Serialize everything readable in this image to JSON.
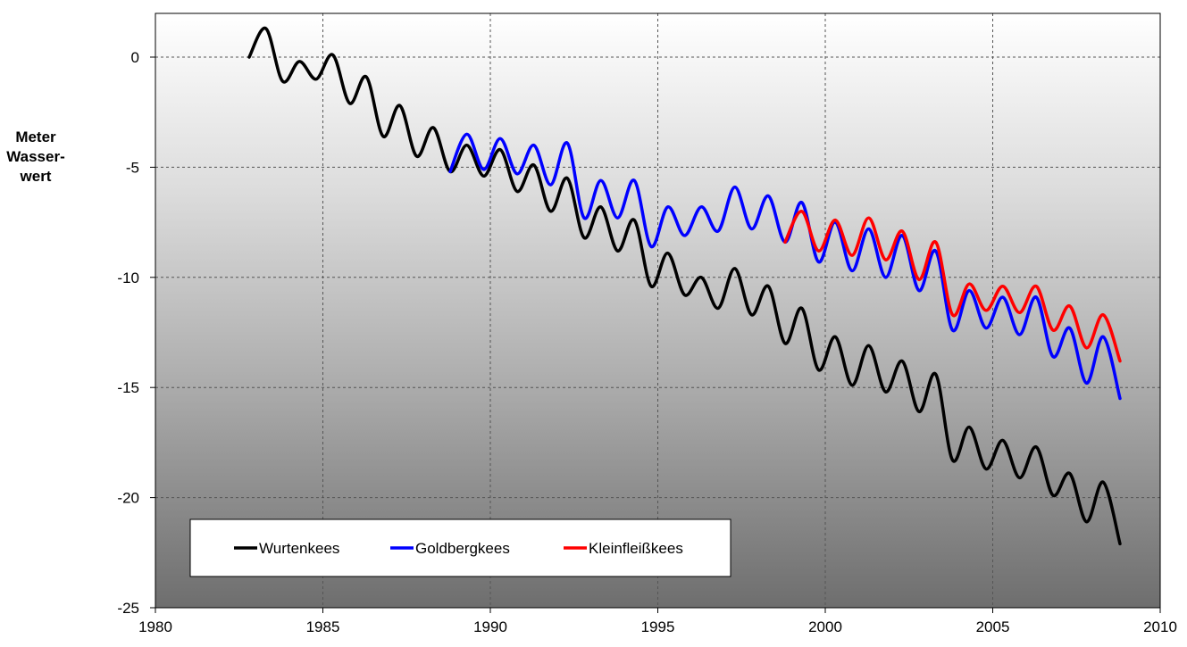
{
  "chart_data": {
    "type": "line",
    "ylabel": "Meter\nWasser-\nwert",
    "xlim": [
      1980,
      2010
    ],
    "ylim": [
      -25,
      2
    ],
    "xticks": [
      1980,
      1985,
      1990,
      1995,
      2000,
      2005,
      2010
    ],
    "yticks": [
      0,
      -5,
      -10,
      -15,
      -20,
      -25
    ],
    "grid": true,
    "legend_position": "bottom-left",
    "series": [
      {
        "name": "Wurtenkees",
        "color": "#000000",
        "x": [
          1982.8,
          1983.3,
          1983.8,
          1984.3,
          1984.8,
          1985.3,
          1985.8,
          1986.3,
          1986.8,
          1987.3,
          1987.8,
          1988.3,
          1988.8,
          1989.3,
          1989.8,
          1990.3,
          1990.8,
          1991.3,
          1991.8,
          1992.3,
          1992.8,
          1993.3,
          1993.8,
          1994.3,
          1994.8,
          1995.3,
          1995.8,
          1996.3,
          1996.8,
          1997.3,
          1997.8,
          1998.3,
          1998.8,
          1999.3,
          1999.8,
          2000.3,
          2000.8,
          2001.3,
          2001.8,
          2002.3,
          2002.8,
          2003.3,
          2003.8,
          2004.3,
          2004.8,
          2005.3,
          2005.8,
          2006.3,
          2006.8,
          2007.3,
          2007.8,
          2008.3,
          2008.8
        ],
        "y": [
          0.0,
          1.3,
          -1.1,
          -0.2,
          -1.0,
          0.1,
          -2.1,
          -0.9,
          -3.6,
          -2.2,
          -4.5,
          -3.2,
          -5.2,
          -4.0,
          -5.4,
          -4.2,
          -6.1,
          -4.9,
          -7.0,
          -5.5,
          -8.2,
          -6.8,
          -8.8,
          -7.4,
          -10.4,
          -8.9,
          -10.8,
          -10.0,
          -11.4,
          -9.6,
          -11.7,
          -10.4,
          -13.0,
          -11.4,
          -14.2,
          -12.7,
          -14.9,
          -13.1,
          -15.2,
          -13.8,
          -16.1,
          -14.4,
          -18.3,
          -16.8,
          -18.7,
          -17.4,
          -19.1,
          -17.7,
          -19.9,
          -18.9,
          -21.1,
          -19.3,
          -22.1
        ]
      },
      {
        "name": "Goldbergkees",
        "color": "#0000ff",
        "x": [
          1988.8,
          1989.3,
          1989.8,
          1990.3,
          1990.8,
          1991.3,
          1991.8,
          1992.3,
          1992.8,
          1993.3,
          1993.8,
          1994.3,
          1994.8,
          1995.3,
          1995.8,
          1996.3,
          1996.8,
          1997.3,
          1997.8,
          1998.3,
          1998.8,
          1999.3,
          1999.8,
          2000.3,
          2000.8,
          2001.3,
          2001.8,
          2002.3,
          2002.8,
          2003.3,
          2003.8,
          2004.3,
          2004.8,
          2005.3,
          2005.8,
          2006.3,
          2006.8,
          2007.3,
          2007.8,
          2008.3,
          2008.8
        ],
        "y": [
          -5.2,
          -3.5,
          -5.1,
          -3.7,
          -5.3,
          -4.0,
          -5.8,
          -3.9,
          -7.3,
          -5.6,
          -7.3,
          -5.6,
          -8.6,
          -6.8,
          -8.1,
          -6.8,
          -7.9,
          -5.9,
          -7.8,
          -6.3,
          -8.4,
          -6.6,
          -9.3,
          -7.5,
          -9.7,
          -7.8,
          -10.0,
          -8.1,
          -10.6,
          -8.8,
          -12.4,
          -10.6,
          -12.3,
          -10.9,
          -12.6,
          -10.9,
          -13.6,
          -12.3,
          -14.8,
          -12.7,
          -15.5
        ]
      },
      {
        "name": "Kleinfleißkees",
        "color": "#ff0000",
        "x": [
          1998.8,
          1999.3,
          1999.8,
          2000.3,
          2000.8,
          2001.3,
          2001.8,
          2002.3,
          2002.8,
          2003.3,
          2003.8,
          2004.3,
          2004.8,
          2005.3,
          2005.8,
          2006.3,
          2006.8,
          2007.3,
          2007.8,
          2008.3,
          2008.8
        ],
        "y": [
          -8.4,
          -7.0,
          -8.8,
          -7.4,
          -9.0,
          -7.3,
          -9.2,
          -7.9,
          -10.1,
          -8.4,
          -11.7,
          -10.3,
          -11.5,
          -10.4,
          -11.6,
          -10.4,
          -12.4,
          -11.3,
          -13.2,
          -11.7,
          -13.8
        ]
      }
    ]
  }
}
